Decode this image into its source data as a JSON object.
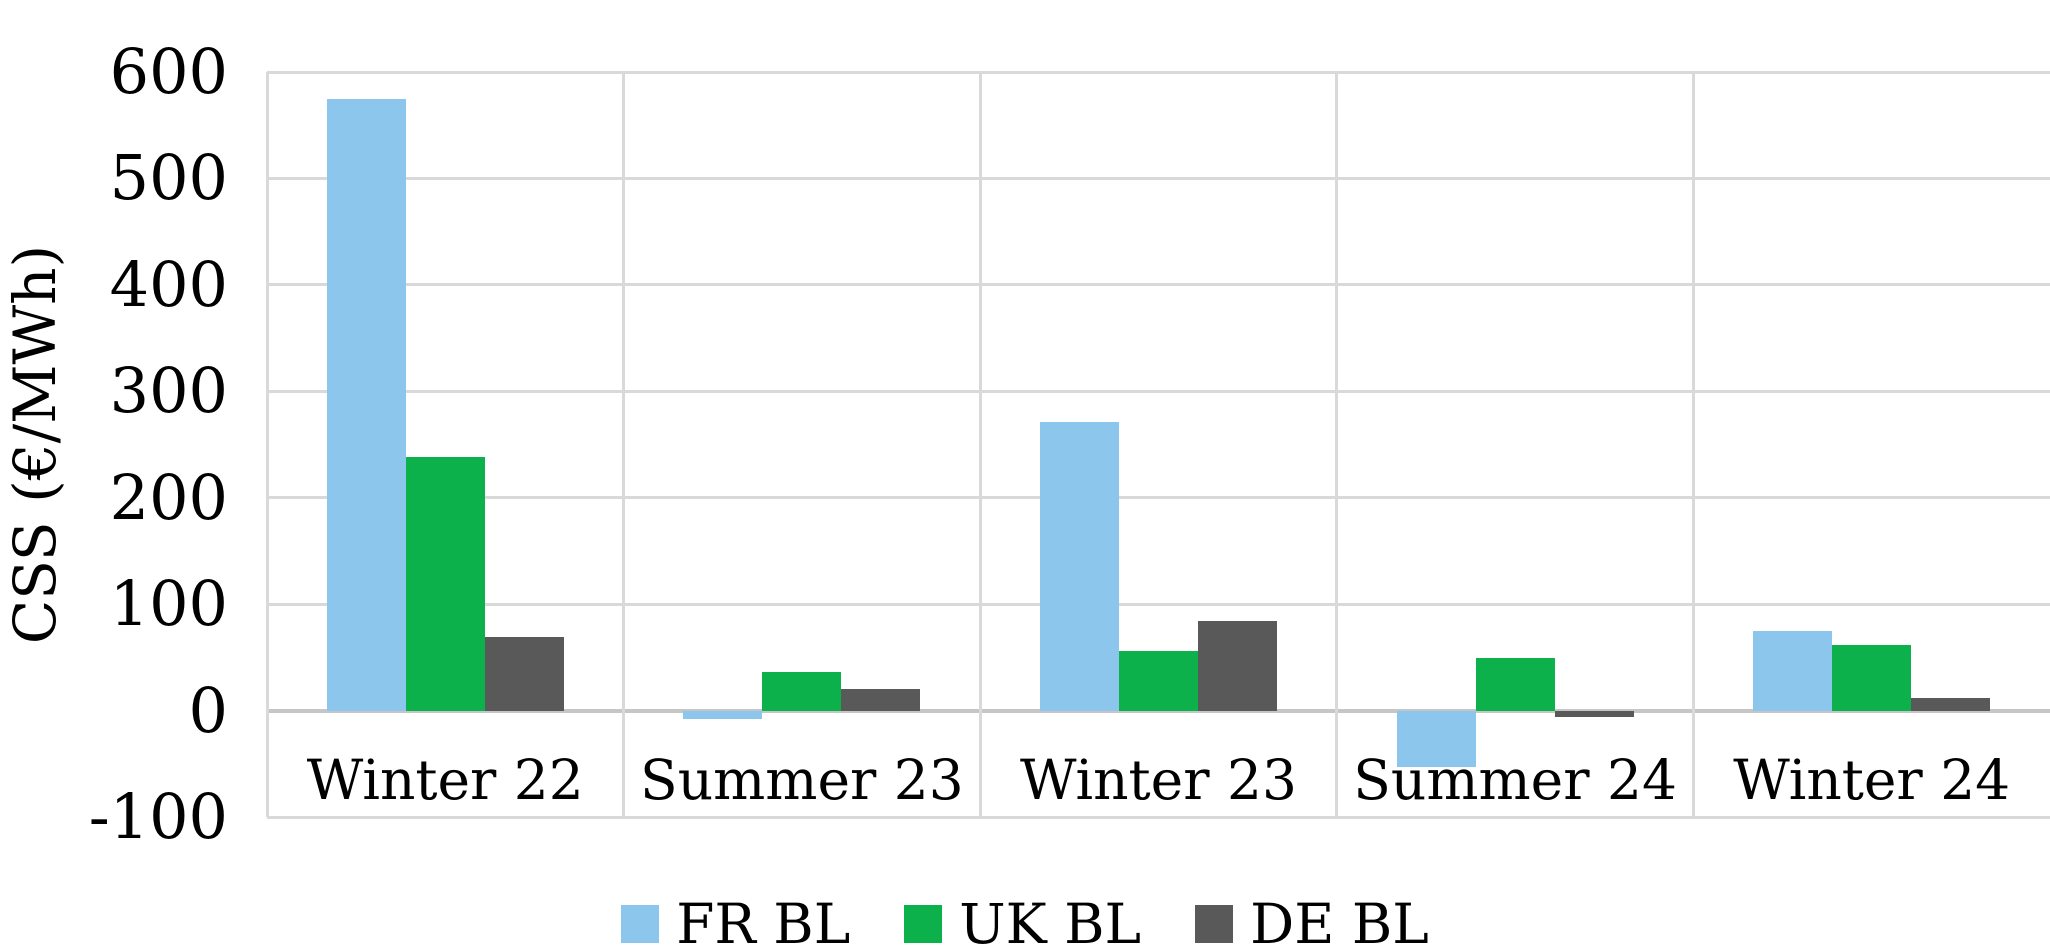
{
  "chart_data": {
    "type": "bar",
    "title": "",
    "xlabel": "",
    "ylabel": "CSS (€/MWh)",
    "categories": [
      "Winter 22",
      "Summer 23",
      "Winter 23",
      "Summer 24",
      "Winter 24"
    ],
    "series": [
      {
        "name": "FR BL",
        "color": "#8DC6ED",
        "values": [
          575,
          -8,
          271,
          -53,
          75
        ]
      },
      {
        "name": "UK BL",
        "color": "#0CB14B",
        "values": [
          238,
          36,
          56,
          49,
          62
        ]
      },
      {
        "name": "DE BL",
        "color": "#595959",
        "values": [
          69,
          20,
          84,
          -6,
          12
        ]
      }
    ],
    "y_ticks": [
      600,
      500,
      400,
      300,
      200,
      100,
      0,
      -100
    ],
    "ylim": [
      -100,
      600
    ],
    "grid": true,
    "legend_position": "bottom",
    "colors": {
      "gridline": "#D9D9D9",
      "axis_line": "#C6C6C6",
      "text": "#000000",
      "background": "#FFFFFF"
    }
  }
}
